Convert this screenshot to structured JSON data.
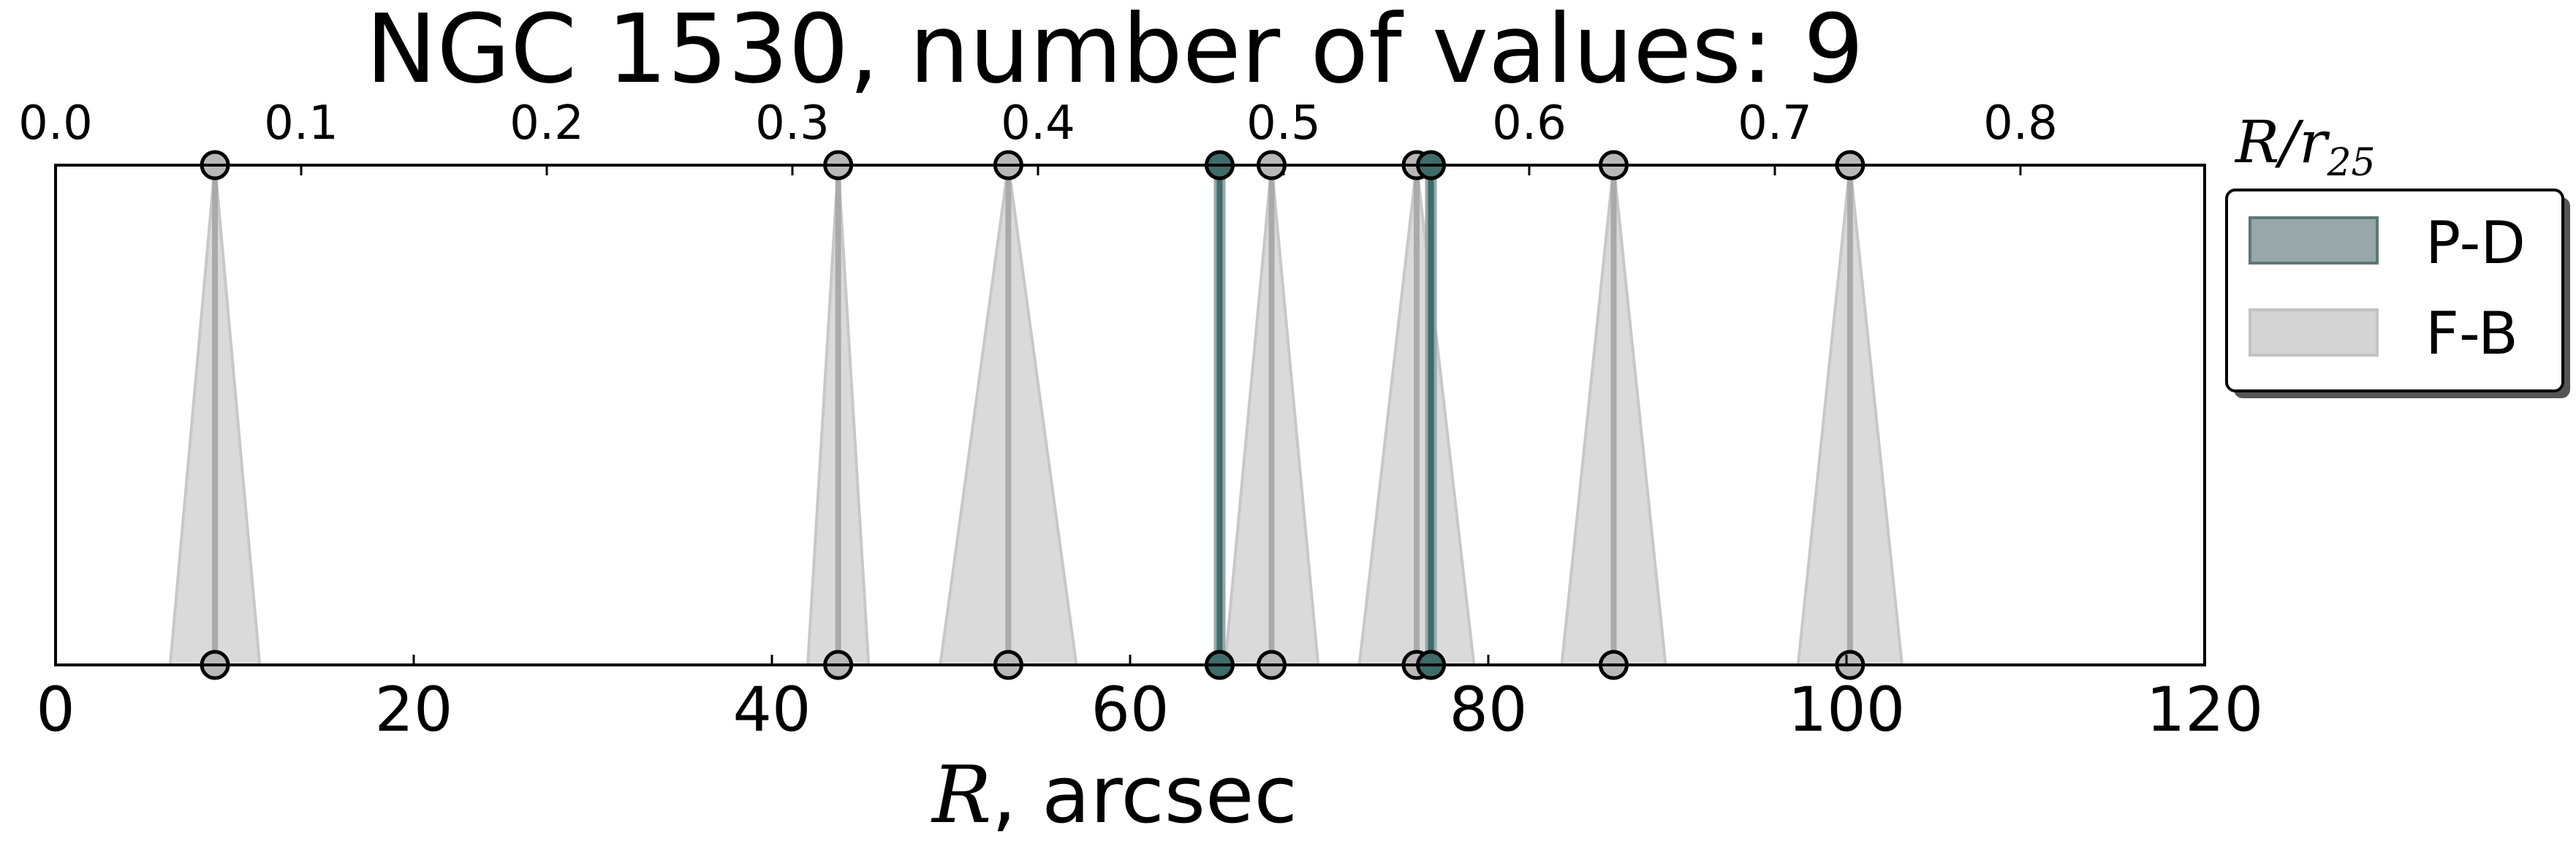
{
  "chart_data": {
    "type": "scatter",
    "title": "NGC 1530, number of values: 9",
    "xlabel_math": "R",
    "xlabel_rest": ", arcsec",
    "xlim": [
      0,
      120
    ],
    "xticks": [
      0,
      20,
      40,
      60,
      80,
      100,
      120
    ],
    "top_axis": {
      "label_main": "R/r",
      "label_sub": "25",
      "xlim": [
        0,
        0.875
      ],
      "ticks": [
        "0.0",
        "0.1",
        "0.2",
        "0.3",
        "0.4",
        "0.5",
        "0.6",
        "0.7",
        "0.8"
      ]
    },
    "grid": false,
    "legend_position": "outside-right-top",
    "series": [
      {
        "name": "P-D",
        "color": "#3f6b68",
        "fill": "#98a8a8",
        "x": [
          65.0,
          76.8
        ],
        "x_err": [
          0.0,
          0.0
        ]
      },
      {
        "name": "F-B",
        "color": "#aaaaaa",
        "fill": "#d4d4d4",
        "x": [
          8.9,
          43.7,
          53.2,
          67.9,
          76.0,
          87.0,
          100.2
        ],
        "x_err": [
          2.5,
          1.7,
          3.8,
          2.6,
          3.2,
          2.9,
          2.9
        ]
      }
    ]
  }
}
